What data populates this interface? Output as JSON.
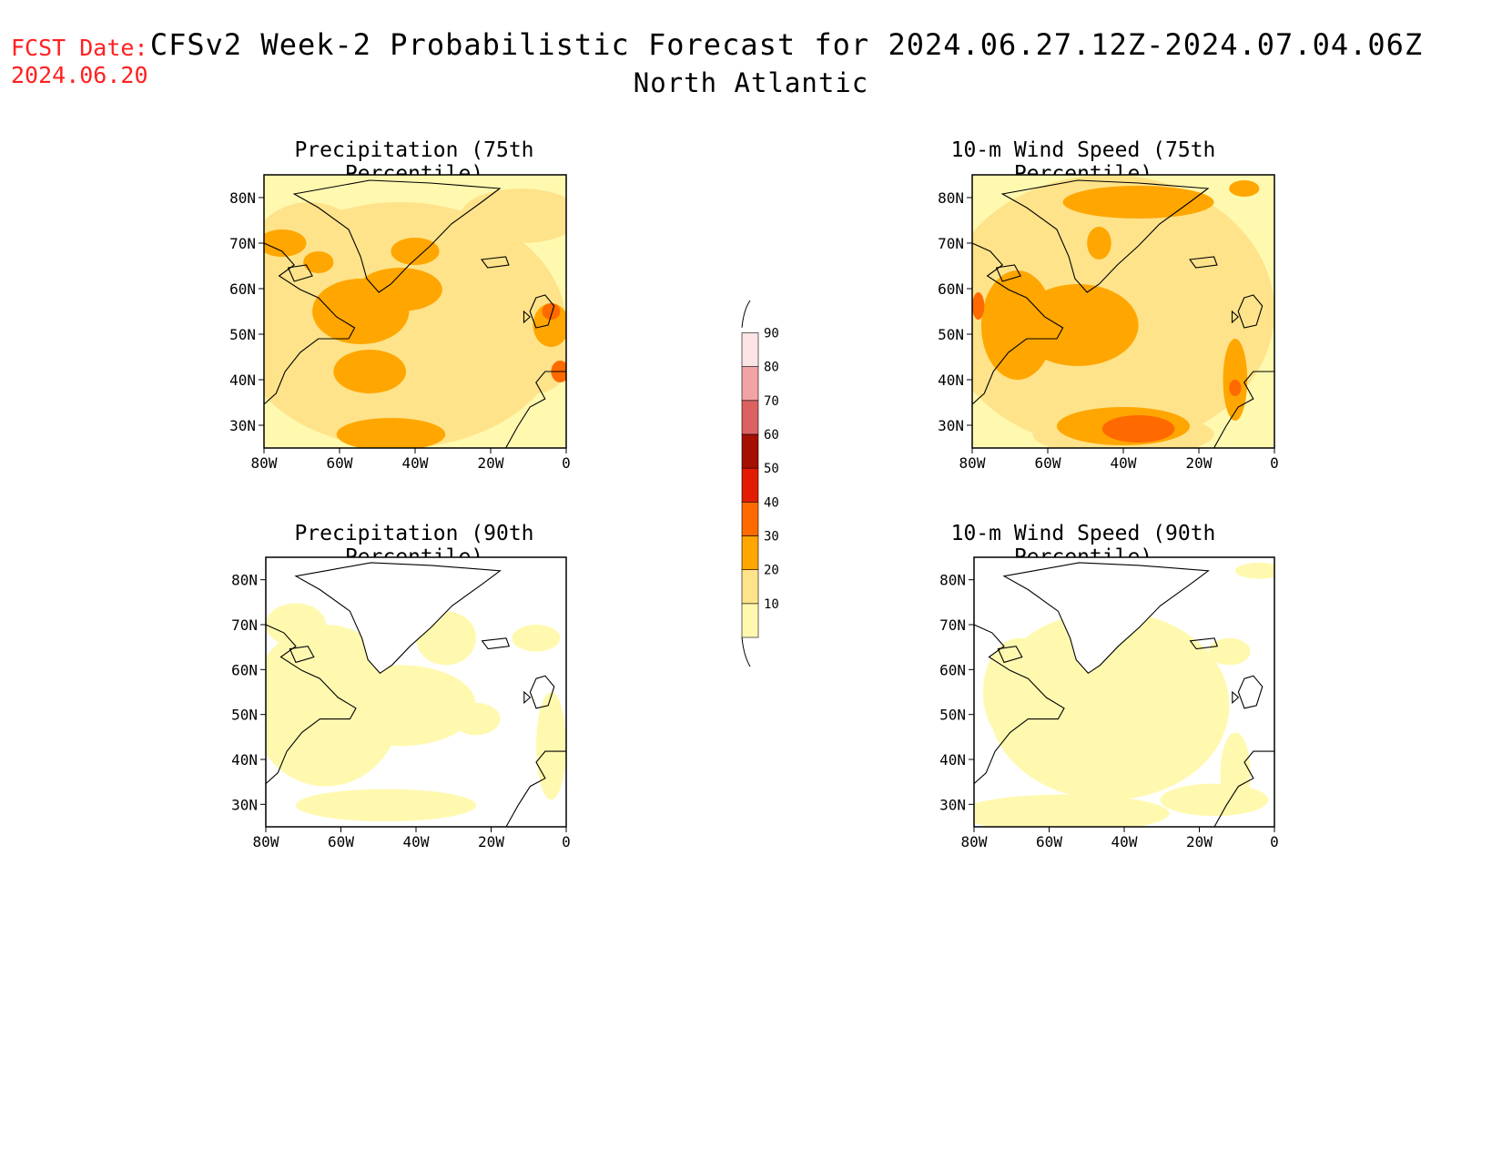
{
  "header": {
    "fcst_label": "FCST Date:",
    "fcst_date": "2024.06.20",
    "title": "CFSv2 Week-2 Probabilistic Forecast for 2024.06.27.12Z-2024.07.04.06Z",
    "subtitle": "North Atlantic"
  },
  "panels": [
    {
      "title": "Precipitation (75th Percentile)",
      "variant": "precip75"
    },
    {
      "title": "10-m Wind Speed (75th Percentile)",
      "variant": "wind75"
    },
    {
      "title": "Precipitation (90th Percentile)",
      "variant": "precip90"
    },
    {
      "title": "10-m Wind Speed (90th Percentile)",
      "variant": "wind90"
    }
  ],
  "axes": {
    "lat_ticks": [
      "80N",
      "70N",
      "60N",
      "50N",
      "40N",
      "30N"
    ],
    "lon_ticks": [
      "80W",
      "60W",
      "40W",
      "20W",
      "0"
    ]
  },
  "colorbar": {
    "levels": [
      "10",
      "20",
      "30",
      "40",
      "50",
      "60",
      "70",
      "80",
      "90"
    ],
    "colors": [
      "#fff9b0",
      "#fee38a",
      "#ffa600",
      "#ff6a00",
      "#e21c00",
      "#a50f00",
      "#dc6161",
      "#f2a4a4",
      "#fde4e4"
    ]
  }
}
